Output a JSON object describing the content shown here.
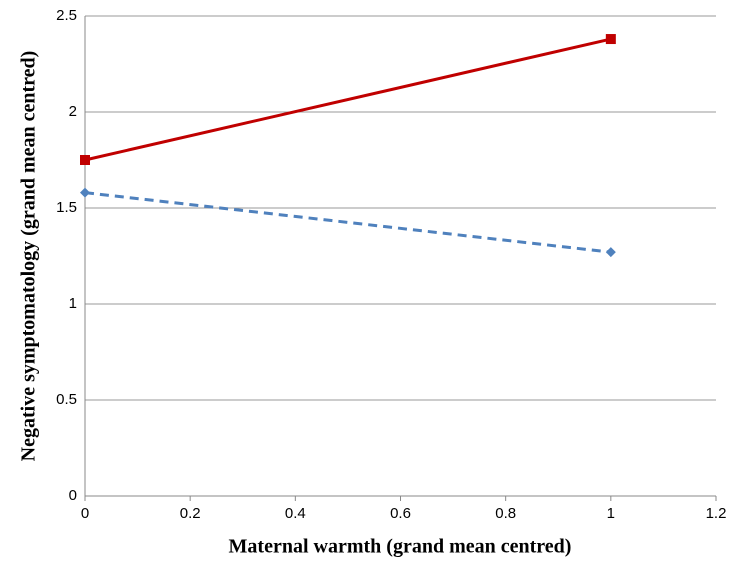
{
  "chart_data": {
    "type": "line",
    "x_label": "Maternal warmth (grand mean centred)",
    "y_label": "Negative symptomatology (grand mean centred)",
    "x": [
      0,
      1
    ],
    "series": [
      {
        "color": "#c00000",
        "marker": "square",
        "dashed": false,
        "values": [
          1.75,
          2.38
        ]
      },
      {
        "color": "#4f81bd",
        "marker": "diamond",
        "dashed": true,
        "values": [
          1.58,
          1.27
        ]
      }
    ],
    "xlim": [
      0,
      1.2
    ],
    "xticks": [
      0,
      0.2,
      0.4,
      0.6,
      0.8,
      1,
      1.2
    ],
    "ylim": [
      0,
      2.5
    ],
    "yticks": [
      0,
      0.5,
      1,
      1.5,
      2,
      2.5
    ],
    "grid": true
  }
}
